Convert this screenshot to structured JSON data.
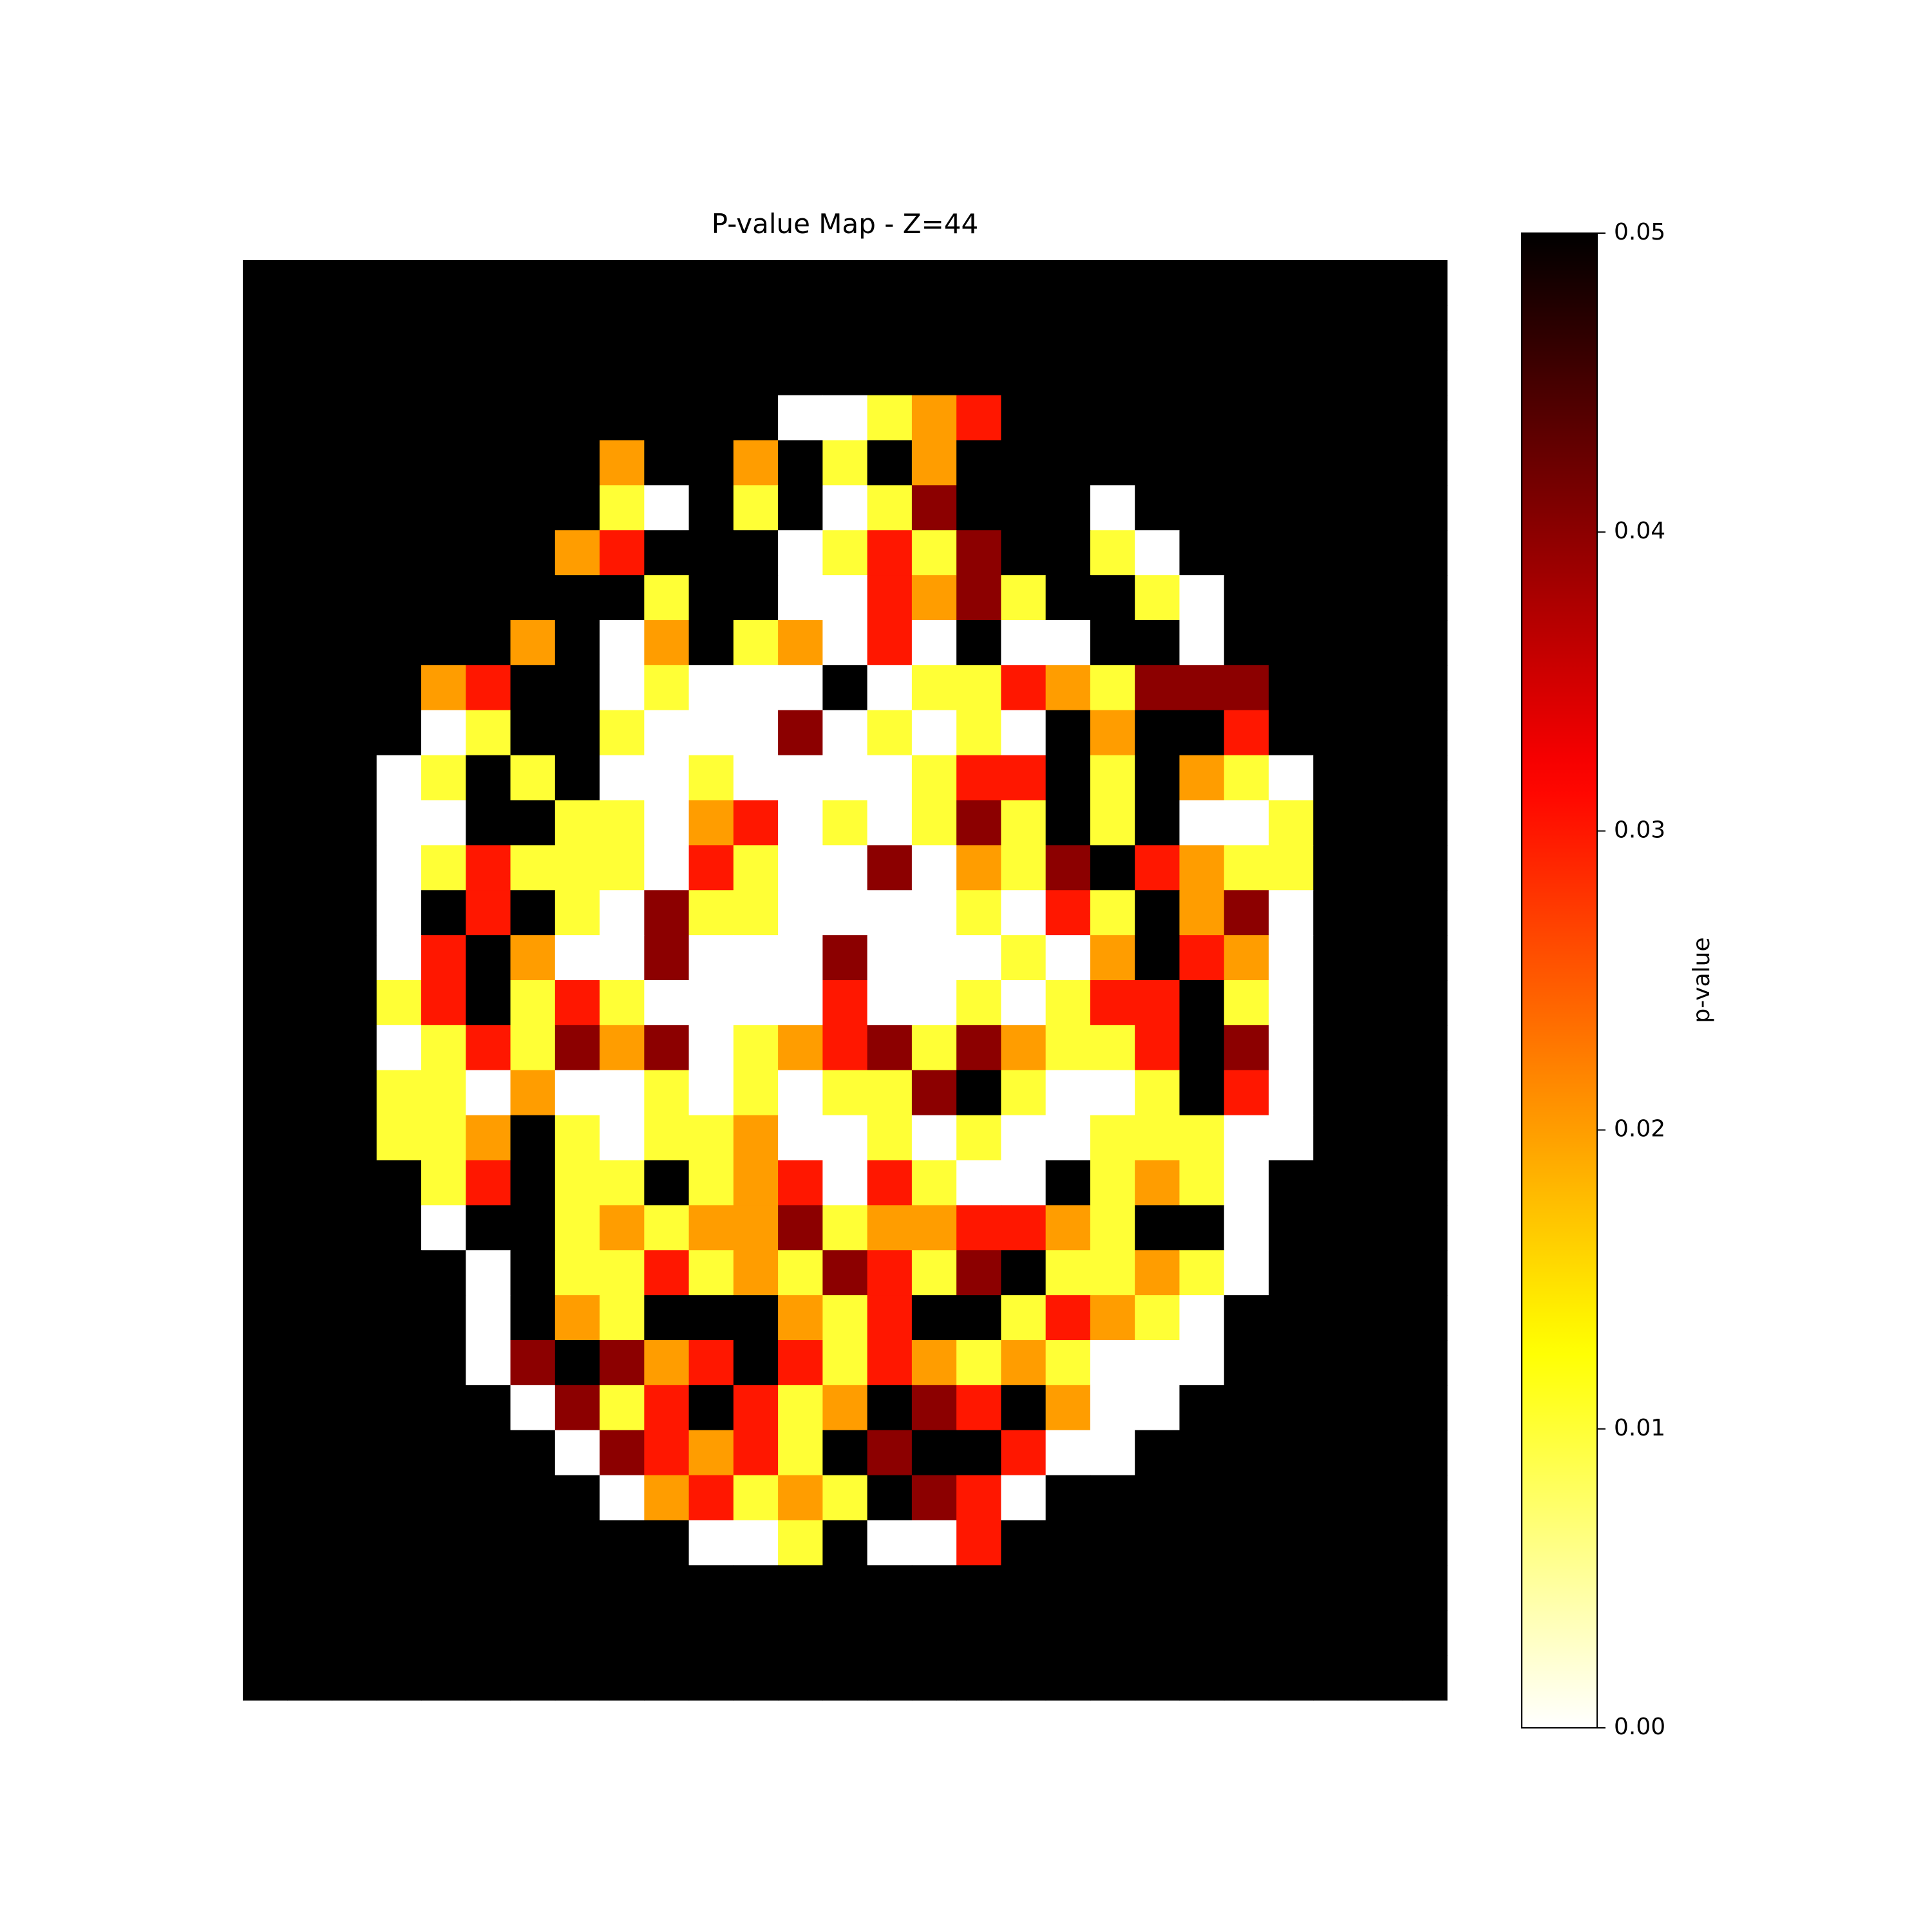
{
  "chart_data": {
    "type": "heatmap",
    "title": "P-value Map - Z=44",
    "cmap": "hot_r",
    "clim": [
      0,
      0.05
    ],
    "colorbar_label": "p-value",
    "colorbar_ticks": [
      {
        "value": 0,
        "label": "0.00"
      },
      0.01,
      0.02,
      0.03,
      0.04,
      0.05
    ],
    "z": [
      [
        0.05,
        0.05,
        0.05,
        0.05,
        0.05,
        0.05,
        0.05,
        0.05,
        0.05,
        0.05,
        0.05,
        0.05,
        0.05,
        0.05,
        0.05,
        0.05,
        0.05,
        0.05,
        0.05,
        0.05,
        0.05,
        0.05,
        0.05,
        0.05,
        0.05,
        0.05,
        0.05
      ],
      [
        0.05,
        0.05,
        0.05,
        0.05,
        0.05,
        0.05,
        0.05,
        0.05,
        0.05,
        0.05,
        0.05,
        0.05,
        0.05,
        0.05,
        0.05,
        0.05,
        0.05,
        0.05,
        0.05,
        0.05,
        0.05,
        0.05,
        0.05,
        0.05,
        0.05,
        0.05,
        0.05
      ],
      [
        0.05,
        0.05,
        0.05,
        0.05,
        0.05,
        0.05,
        0.05,
        0.05,
        0.05,
        0.05,
        0.05,
        0.05,
        0.05,
        0.05,
        0.05,
        0.05,
        0.05,
        0.05,
        0.05,
        0.05,
        0.05,
        0.05,
        0.05,
        0.05,
        0.05,
        0.05,
        0.05
      ],
      [
        0.05,
        0.05,
        0.05,
        0.05,
        0.05,
        0.05,
        0.05,
        0.05,
        0.05,
        0.05,
        0.05,
        0.05,
        0,
        0,
        0.01,
        0.02,
        0.03,
        0.05,
        0.05,
        0.05,
        0.05,
        0.05,
        0.05,
        0.05,
        0.05,
        0.05,
        0.05
      ],
      [
        0.05,
        0.05,
        0.05,
        0.05,
        0.05,
        0.05,
        0.05,
        0.05,
        0.02,
        0.05,
        0.05,
        0.02,
        0.05,
        0.01,
        0.05,
        0.02,
        0.05,
        0.05,
        0.05,
        0.05,
        0.05,
        0.05,
        0.05,
        0.05,
        0.05,
        0.05,
        0.05
      ],
      [
        0.05,
        0.05,
        0.05,
        0.05,
        0.05,
        0.05,
        0.05,
        0.05,
        0.01,
        0,
        0.05,
        0.01,
        0.05,
        0,
        0.01,
        0.04,
        0.05,
        0.05,
        0.05,
        0,
        0.05,
        0.05,
        0.05,
        0.05,
        0.05,
        0.05,
        0.05
      ],
      [
        0.05,
        0.05,
        0.05,
        0.05,
        0.05,
        0.05,
        0.05,
        0.02,
        0.03,
        0.05,
        0.05,
        0.05,
        0,
        0.01,
        0.03,
        0.01,
        0.04,
        0.05,
        0.05,
        0.01,
        0,
        0.05,
        0.05,
        0.05,
        0.05,
        0.05,
        0.05
      ],
      [
        0.05,
        0.05,
        0.05,
        0.05,
        0.05,
        0.05,
        0.05,
        0.05,
        0.05,
        0.01,
        0.05,
        0.05,
        0,
        0,
        0.03,
        0.02,
        0.04,
        0.01,
        0.05,
        0.05,
        0.01,
        0,
        0.05,
        0.05,
        0.05,
        0.05,
        0.05
      ],
      [
        0.05,
        0.05,
        0.05,
        0.05,
        0.05,
        0.05,
        0.02,
        0.05,
        0,
        0.02,
        0.05,
        0.01,
        0.02,
        0,
        0.03,
        0,
        0.05,
        0,
        0,
        0.05,
        0.05,
        0,
        0.05,
        0.05,
        0.05,
        0.05,
        0.05
      ],
      [
        0.05,
        0.05,
        0.05,
        0.05,
        0.02,
        0.03,
        0.05,
        0.05,
        0,
        0.01,
        0,
        0,
        0,
        0.05,
        0,
        0.01,
        0.01,
        0.03,
        0.02,
        0.01,
        0.04,
        0.04,
        0.04,
        0.05,
        0.05,
        0.05,
        0.05
      ],
      [
        0.05,
        0.05,
        0.05,
        0.05,
        0,
        0.01,
        0.05,
        0.05,
        0.01,
        0,
        0,
        0,
        0.04,
        0,
        0.01,
        0,
        0.01,
        0,
        0.05,
        0.02,
        0.05,
        0.05,
        0.03,
        0.05,
        0.05,
        0.05,
        0.05
      ],
      [
        0.05,
        0.05,
        0.05,
        0,
        0.01,
        0.05,
        0.01,
        0.05,
        0,
        0,
        0.01,
        0,
        0,
        0,
        0,
        0.01,
        0.03,
        0.03,
        0.05,
        0.01,
        0.05,
        0.02,
        0.01,
        0,
        0.05,
        0.05,
        0.05
      ],
      [
        0.05,
        0.05,
        0.05,
        0,
        0,
        0.05,
        0.05,
        0.01,
        0.01,
        0,
        0.02,
        0.03,
        0,
        0.01,
        0,
        0.01,
        0.04,
        0.01,
        0.05,
        0.01,
        0.05,
        0,
        0,
        0.01,
        0.05,
        0.05,
        0.05
      ],
      [
        0.05,
        0.05,
        0.05,
        0,
        0.01,
        0.03,
        0.01,
        0.01,
        0.01,
        0,
        0.03,
        0.01,
        0,
        0,
        0.04,
        0,
        0.02,
        0.01,
        0.04,
        0.05,
        0.03,
        0.02,
        0.01,
        0.01,
        0.05,
        0.05,
        0.05
      ],
      [
        0.05,
        0.05,
        0.05,
        0,
        0.05,
        0.03,
        0.05,
        0.01,
        0,
        0.04,
        0.01,
        0.01,
        0,
        0,
        0,
        0,
        0.01,
        0,
        0.03,
        0.01,
        0.05,
        0.02,
        0.04,
        0,
        0.05,
        0.05,
        0.05
      ],
      [
        0.05,
        0.05,
        0.05,
        0,
        0.03,
        0.05,
        0.02,
        0,
        0,
        0.04,
        0,
        0,
        0,
        0.04,
        0,
        0,
        0,
        0.01,
        0,
        0.02,
        0.05,
        0.03,
        0.02,
        0,
        0.05,
        0.05,
        0.05
      ],
      [
        0.05,
        0.05,
        0.05,
        0.01,
        0.03,
        0.05,
        0.01,
        0.03,
        0.01,
        0,
        0,
        0,
        0,
        0.03,
        0,
        0,
        0.01,
        0,
        0.01,
        0.03,
        0.03,
        0.05,
        0.01,
        0,
        0.05,
        0.05,
        0.05
      ],
      [
        0.05,
        0.05,
        0.05,
        0,
        0.01,
        0.03,
        0.01,
        0.04,
        0.02,
        0.04,
        0,
        0.01,
        0.02,
        0.03,
        0.04,
        0.01,
        0.04,
        0.02,
        0.01,
        0.01,
        0.03,
        0.05,
        0.04,
        0,
        0.05,
        0.05,
        0.05
      ],
      [
        0.05,
        0.05,
        0.05,
        0.01,
        0.01,
        0,
        0.02,
        0,
        0,
        0.01,
        0,
        0.01,
        0,
        0.01,
        0.01,
        0.04,
        0.05,
        0.01,
        0,
        0,
        0.01,
        0.05,
        0.03,
        0,
        0.05,
        0.05,
        0.05
      ],
      [
        0.05,
        0.05,
        0.05,
        0.01,
        0.01,
        0.02,
        0.05,
        0.01,
        0,
        0.01,
        0.01,
        0.02,
        0,
        0,
        0.01,
        0,
        0.01,
        0,
        0,
        0.01,
        0.01,
        0.01,
        0,
        0,
        0.05,
        0.05,
        0.05
      ],
      [
        0.05,
        0.05,
        0.05,
        0.05,
        0.01,
        0.03,
        0.05,
        0.01,
        0.01,
        0.05,
        0.01,
        0.02,
        0.03,
        0,
        0.03,
        0.01,
        0,
        0,
        0.05,
        0.01,
        0.02,
        0.01,
        0,
        0.05,
        0.05,
        0.05,
        0.05
      ],
      [
        0.05,
        0.05,
        0.05,
        0.05,
        0,
        0.05,
        0.05,
        0.01,
        0.02,
        0.01,
        0.02,
        0.02,
        0.04,
        0.01,
        0.02,
        0.02,
        0.03,
        0.03,
        0.02,
        0.01,
        0.05,
        0.05,
        0,
        0.05,
        0.05,
        0.05,
        0.05
      ],
      [
        0.05,
        0.05,
        0.05,
        0.05,
        0.05,
        0,
        0.05,
        0.01,
        0.01,
        0.03,
        0.01,
        0.02,
        0.01,
        0.04,
        0.03,
        0.01,
        0.04,
        0.05,
        0.01,
        0.01,
        0.02,
        0.01,
        0,
        0.05,
        0.05,
        0.05,
        0.05
      ],
      [
        0.05,
        0.05,
        0.05,
        0.05,
        0.05,
        0,
        0.05,
        0.02,
        0.01,
        0.05,
        0.05,
        0.05,
        0.02,
        0.01,
        0.03,
        0.05,
        0.05,
        0.01,
        0.03,
        0.02,
        0.01,
        0,
        0.05,
        0.05,
        0.05,
        0.05,
        0.05
      ],
      [
        0.05,
        0.05,
        0.05,
        0.05,
        0.05,
        0,
        0.04,
        0.05,
        0.04,
        0.02,
        0.03,
        0.05,
        0.03,
        0.01,
        0.03,
        0.02,
        0.01,
        0.02,
        0.01,
        0,
        0,
        0,
        0.05,
        0.05,
        0.05,
        0.05,
        0.05
      ],
      [
        0.05,
        0.05,
        0.05,
        0.05,
        0.05,
        0.05,
        0,
        0.04,
        0.01,
        0.03,
        0.05,
        0.03,
        0.01,
        0.02,
        0.05,
        0.04,
        0.03,
        0.05,
        0.02,
        0,
        0,
        0.05,
        0.05,
        0.05,
        0.05,
        0.05,
        0.05
      ],
      [
        0.05,
        0.05,
        0.05,
        0.05,
        0.05,
        0.05,
        0.05,
        0,
        0.04,
        0.03,
        0.02,
        0.03,
        0.01,
        0.05,
        0.04,
        0.05,
        0.05,
        0.03,
        0,
        0,
        0.05,
        0.05,
        0.05,
        0.05,
        0.05,
        0.05,
        0.05
      ],
      [
        0.05,
        0.05,
        0.05,
        0.05,
        0.05,
        0.05,
        0.05,
        0.05,
        0,
        0.02,
        0.03,
        0.01,
        0.02,
        0.01,
        0.05,
        0.04,
        0.03,
        0,
        0.05,
        0.05,
        0.05,
        0.05,
        0.05,
        0.05,
        0.05,
        0.05,
        0.05
      ],
      [
        0.05,
        0.05,
        0.05,
        0.05,
        0.05,
        0.05,
        0.05,
        0.05,
        0.05,
        0.05,
        0,
        0,
        0.01,
        0.05,
        0,
        0,
        0.03,
        0.05,
        0.05,
        0.05,
        0.05,
        0.05,
        0.05,
        0.05,
        0.05,
        0.05,
        0.05
      ],
      [
        0.05,
        0.05,
        0.05,
        0.05,
        0.05,
        0.05,
        0.05,
        0.05,
        0.05,
        0.05,
        0.05,
        0.05,
        0.05,
        0.05,
        0.05,
        0.05,
        0.05,
        0.05,
        0.05,
        0.05,
        0.05,
        0.05,
        0.05,
        0.05,
        0.05,
        0.05,
        0.05
      ],
      [
        0.05,
        0.05,
        0.05,
        0.05,
        0.05,
        0.05,
        0.05,
        0.05,
        0.05,
        0.05,
        0.05,
        0.05,
        0.05,
        0.05,
        0.05,
        0.05,
        0.05,
        0.05,
        0.05,
        0.05,
        0.05,
        0.05,
        0.05,
        0.05,
        0.05,
        0.05,
        0.05
      ],
      [
        0.05,
        0.05,
        0.05,
        0.05,
        0.05,
        0.05,
        0.05,
        0.05,
        0.05,
        0.05,
        0.05,
        0.05,
        0.05,
        0.05,
        0.05,
        0.05,
        0.05,
        0.05,
        0.05,
        0.05,
        0.05,
        0.05,
        0.05,
        0.05,
        0.05,
        0.05,
        0.05
      ]
    ]
  }
}
